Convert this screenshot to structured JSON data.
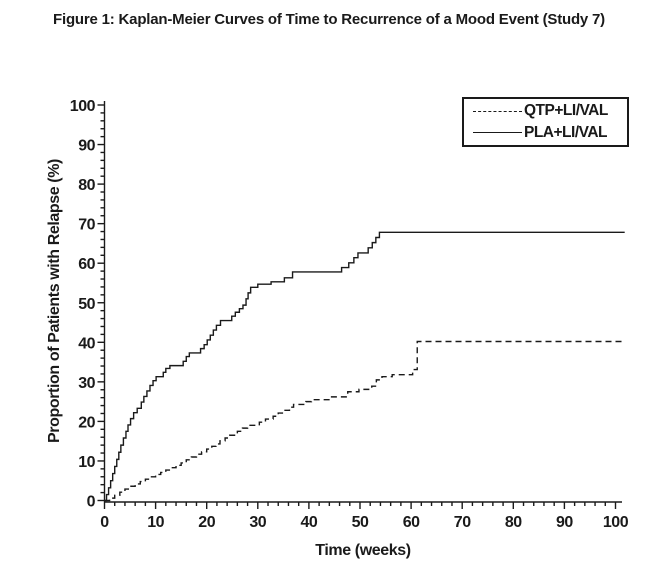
{
  "figure": {
    "title": "Figure 1: Kaplan-Meier Curves of Time to Recurrence of a Mood Event (Study 7)"
  },
  "colors": {
    "text": "#1a1a1a",
    "background": "#ffffff",
    "line": "#1a1a1a"
  },
  "chart_data": {
    "type": "line",
    "subtype": "kaplan-meier-step",
    "title": "Figure 1: Kaplan-Meier Curves of Time to Recurrence of a Mood Event (Study 7)",
    "xlabel": "Time (weeks)",
    "ylabel": "Proportion of Patients with Relapse (%)",
    "xlim": [
      0,
      100
    ],
    "ylim": [
      0,
      100
    ],
    "x_ticks": [
      0,
      10,
      20,
      30,
      40,
      50,
      60,
      70,
      80,
      90,
      100
    ],
    "y_ticks": [
      0,
      10,
      20,
      30,
      40,
      50,
      60,
      70,
      80,
      90,
      100
    ],
    "x_minor_step": 2,
    "y_minor_step": 2,
    "grid": false,
    "legend_position": "top-right",
    "series": [
      {
        "name": "QTP+LI/VAL",
        "style": "dashed",
        "color": "#1a1a1a",
        "points": [
          [
            0,
            0
          ],
          [
            1,
            0.6
          ],
          [
            2,
            1.3
          ],
          [
            3,
            2.1
          ],
          [
            4,
            2.9
          ],
          [
            5,
            3.6
          ],
          [
            6,
            4.2
          ],
          [
            7,
            4.8
          ],
          [
            8,
            5.4
          ],
          [
            9,
            6
          ],
          [
            10,
            6.6
          ],
          [
            11,
            7.1
          ],
          [
            12,
            7.7
          ],
          [
            13,
            8.3
          ],
          [
            14,
            8.9
          ],
          [
            15,
            9.5
          ],
          [
            16,
            10.3
          ],
          [
            17,
            11
          ],
          [
            18,
            11.7
          ],
          [
            19,
            12.3
          ],
          [
            20,
            13
          ],
          [
            21,
            13.7
          ],
          [
            21.8,
            14.3
          ],
          [
            22.6,
            15.1
          ],
          [
            23.6,
            15.8
          ],
          [
            24.5,
            16.5
          ],
          [
            26,
            17.5
          ],
          [
            27,
            18.3
          ],
          [
            28,
            19
          ],
          [
            30.3,
            19.8
          ],
          [
            31.5,
            20.6
          ],
          [
            33,
            21.3
          ],
          [
            34,
            22.1
          ],
          [
            35,
            22.8
          ],
          [
            36.2,
            23.6
          ],
          [
            37,
            24.3
          ],
          [
            39.4,
            25
          ],
          [
            40.5,
            25.5
          ],
          [
            44.1,
            26.2
          ],
          [
            47.6,
            27.5
          ],
          [
            49.8,
            28.1
          ],
          [
            52.3,
            28.9
          ],
          [
            53.2,
            30.5
          ],
          [
            54.3,
            31.3
          ],
          [
            56.3,
            31.8
          ],
          [
            60.3,
            33.1
          ],
          [
            61.2,
            40.2
          ],
          [
            101.8,
            40.2
          ]
        ]
      },
      {
        "name": "PLA+LI/VAL",
        "style": "solid",
        "color": "#1a1a1a",
        "points": [
          [
            0,
            0
          ],
          [
            0.4,
            1.5
          ],
          [
            0.8,
            3.2
          ],
          [
            1.2,
            5
          ],
          [
            1.6,
            6.8
          ],
          [
            2,
            8.6
          ],
          [
            2.4,
            10.4
          ],
          [
            2.8,
            12.2
          ],
          [
            3.2,
            14
          ],
          [
            3.7,
            15.8
          ],
          [
            4.2,
            17.5
          ],
          [
            4.6,
            19.1
          ],
          [
            5.1,
            20.7
          ],
          [
            5.7,
            22.2
          ],
          [
            6.4,
            23.3
          ],
          [
            7.2,
            24.9
          ],
          [
            7.7,
            26.3
          ],
          [
            8.3,
            27.7
          ],
          [
            8.9,
            29.1
          ],
          [
            9.5,
            30.3
          ],
          [
            10.1,
            31.3
          ],
          [
            11.5,
            32.4
          ],
          [
            12,
            33.4
          ],
          [
            12.8,
            34.1
          ],
          [
            15.4,
            35.2
          ],
          [
            16,
            36.4
          ],
          [
            16.6,
            37.3
          ],
          [
            18.8,
            38.4
          ],
          [
            19.5,
            39.4
          ],
          [
            20.1,
            40.6
          ],
          [
            20.7,
            41.8
          ],
          [
            21.3,
            43.1
          ],
          [
            21.9,
            44.3
          ],
          [
            22.7,
            45.5
          ],
          [
            24.9,
            46.6
          ],
          [
            25.6,
            47.6
          ],
          [
            26.4,
            48.5
          ],
          [
            27.1,
            49.4
          ],
          [
            27.7,
            51
          ],
          [
            28.1,
            52.5
          ],
          [
            28.6,
            53.9
          ],
          [
            30,
            54.7
          ],
          [
            32.6,
            55.3
          ],
          [
            35.2,
            56.3
          ],
          [
            36.8,
            57.8
          ],
          [
            46.4,
            58.9
          ],
          [
            47.8,
            60.1
          ],
          [
            48.8,
            61.4
          ],
          [
            49.6,
            62.6
          ],
          [
            51.6,
            63.9
          ],
          [
            52.4,
            65.2
          ],
          [
            53.1,
            66.5
          ],
          [
            53.8,
            67.8
          ],
          [
            101.8,
            67.8
          ]
        ]
      }
    ]
  }
}
